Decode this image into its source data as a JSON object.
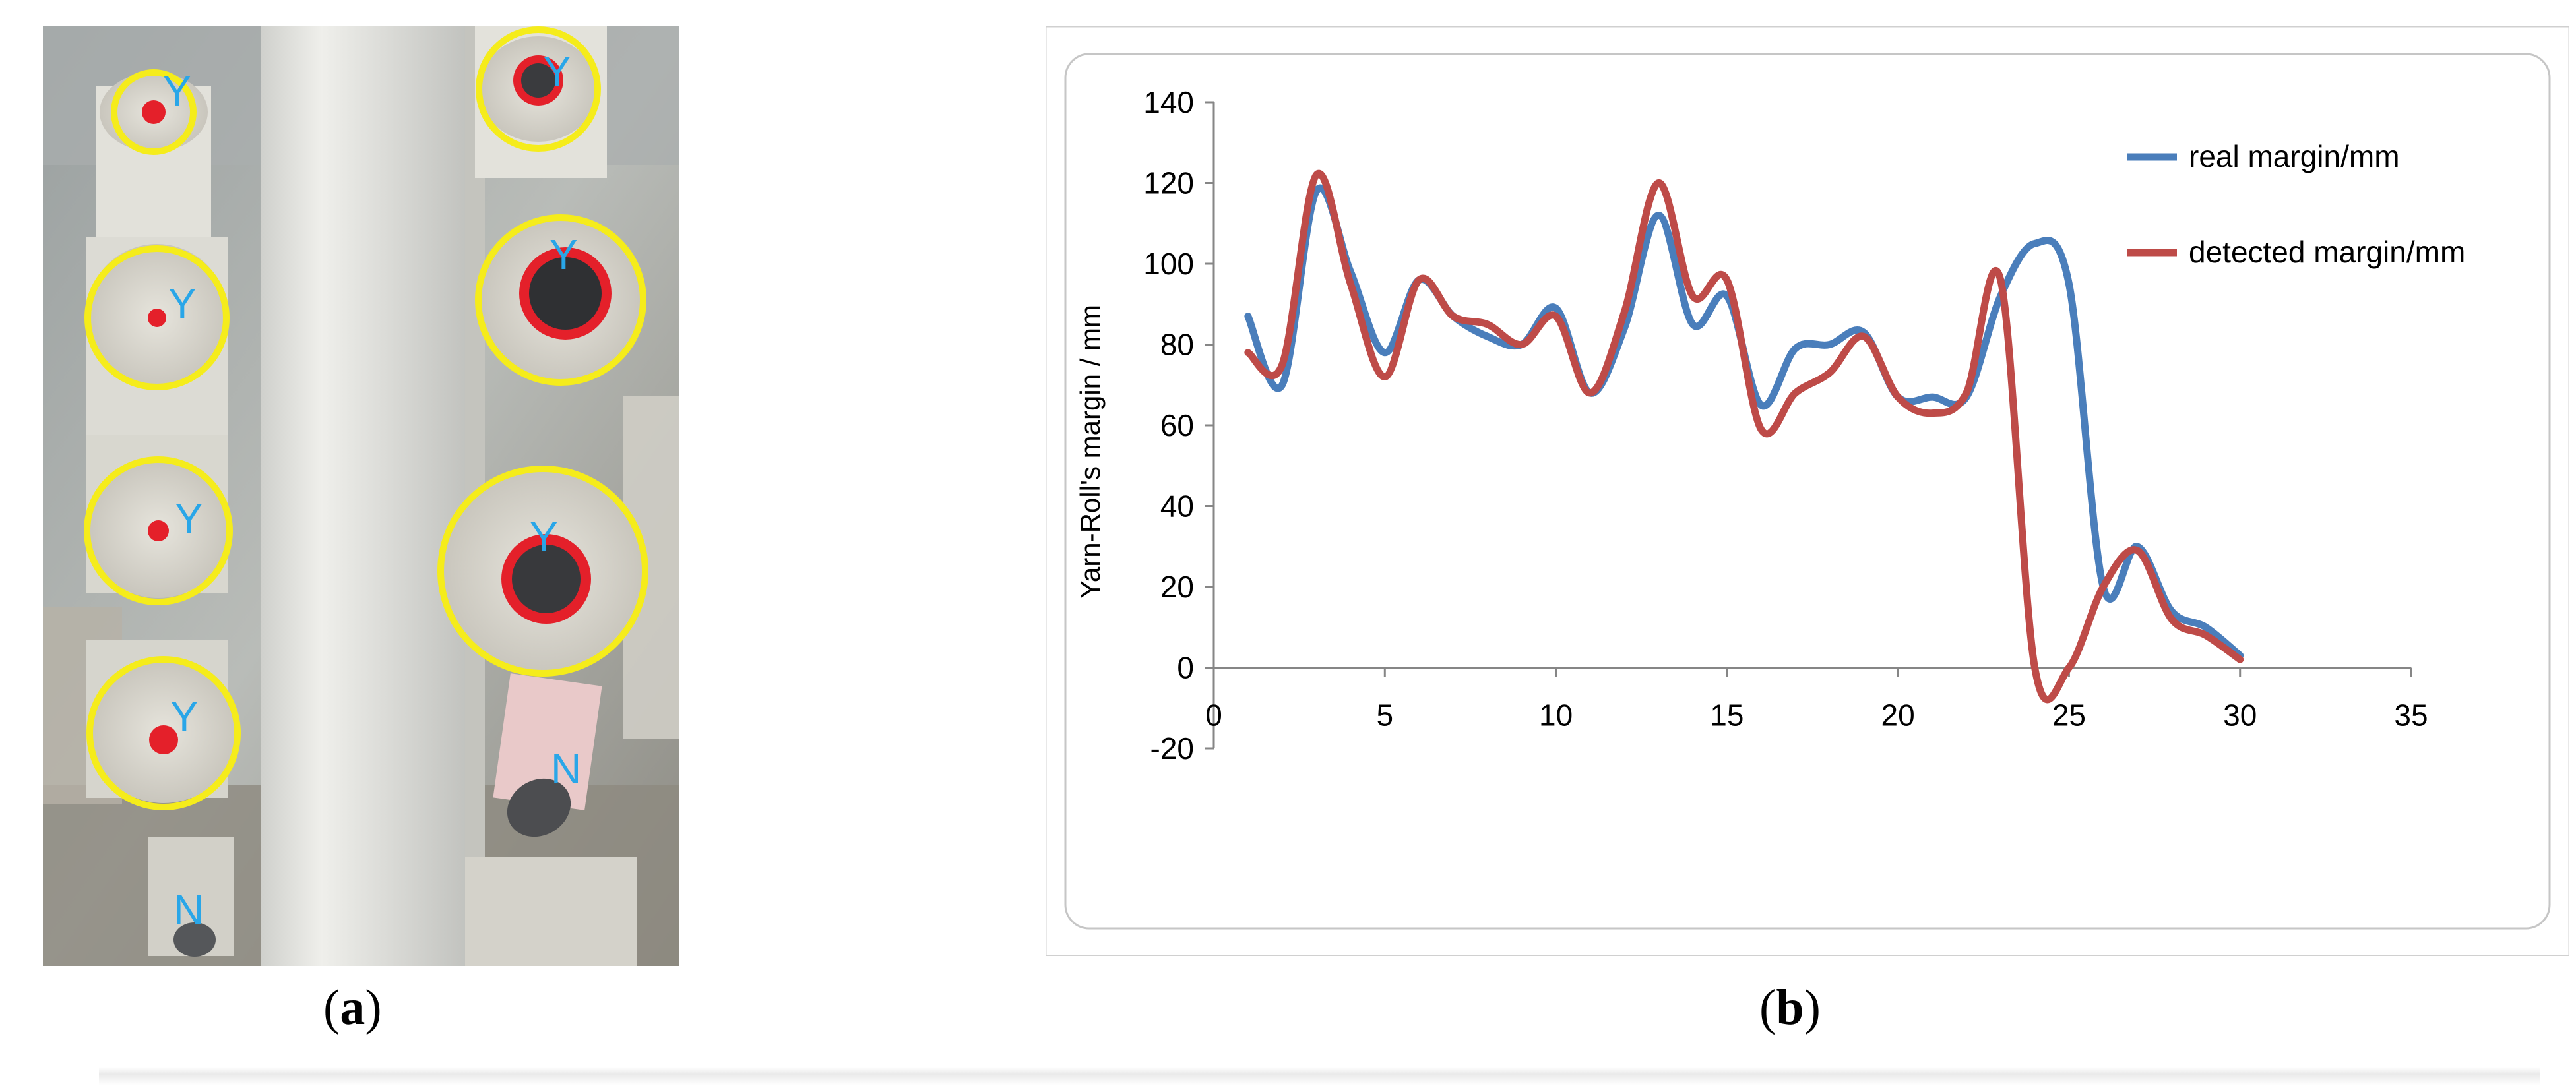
{
  "panels": {
    "a": {
      "label": "a",
      "markers": [
        "Y",
        "Y",
        "Y",
        "Y",
        "Y",
        "Y",
        "Y",
        "N",
        "N"
      ]
    },
    "b": {
      "label": "b"
    }
  },
  "colors": {
    "real": "#4a7ebb",
    "detected": "#be4b48",
    "ring": "#f5ec1b",
    "center": "#e4202a",
    "marker": "#29a6e8"
  },
  "chart_data": {
    "type": "line",
    "title": "",
    "xlabel": "",
    "ylabel": "Yarn-Roll's margin / mm",
    "xlim": [
      0,
      35
    ],
    "ylim": [
      -20,
      140
    ],
    "xticks": [
      0,
      5,
      10,
      15,
      20,
      25,
      30,
      35
    ],
    "yticks": [
      -20,
      0,
      20,
      40,
      60,
      80,
      100,
      120,
      140
    ],
    "grid": false,
    "legend": "top-right",
    "x": [
      1,
      2,
      3,
      4,
      5,
      6,
      7,
      8,
      9,
      10,
      11,
      12,
      13,
      14,
      15,
      16,
      17,
      18,
      19,
      20,
      21,
      22,
      23,
      24,
      25,
      26,
      27,
      28,
      29,
      30
    ],
    "series": [
      {
        "name": "real margin/mm",
        "color": "#4a7ebb",
        "values": [
          87,
          70,
          118,
          98,
          78,
          96,
          87,
          82,
          80,
          89,
          68,
          84,
          112,
          85,
          92,
          65,
          79,
          80,
          83,
          67,
          67,
          67,
          92,
          105,
          95,
          20,
          30,
          14,
          10,
          3
        ]
      },
      {
        "name": "detected margin/mm",
        "color": "#be4b48",
        "values": [
          78,
          75,
          122,
          95,
          72,
          96,
          87,
          85,
          80,
          87,
          68,
          88,
          120,
          92,
          96,
          59,
          68,
          73,
          82,
          67,
          63,
          68,
          96,
          0,
          0,
          20,
          29,
          12,
          8,
          2
        ]
      }
    ]
  }
}
